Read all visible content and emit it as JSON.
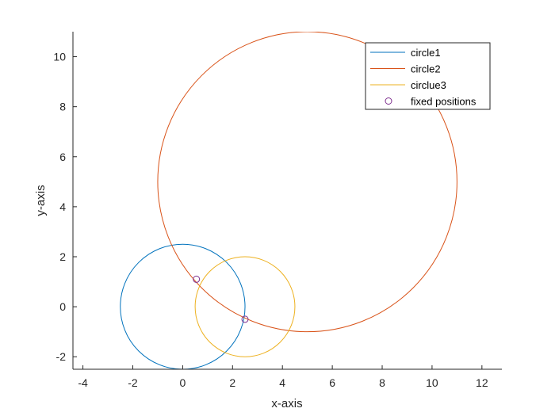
{
  "chart_data": {
    "type": "line",
    "title": "",
    "xlabel": "x-axis",
    "ylabel": "y-axis",
    "xlim": [
      -4.4,
      12.8
    ],
    "ylim": [
      -2.5,
      11
    ],
    "xticks": [
      -4,
      -2,
      0,
      2,
      4,
      6,
      8,
      10,
      12
    ],
    "yticks": [
      -2,
      0,
      2,
      4,
      6,
      8,
      10
    ],
    "grid": false,
    "legend_position": "top-right",
    "series": [
      {
        "name": "circle1",
        "kind": "circle",
        "center": [
          0,
          0
        ],
        "radius": 2.5,
        "color": "#0072BD"
      },
      {
        "name": "circle2",
        "kind": "circle",
        "center": [
          5,
          5
        ],
        "radius": 6,
        "color": "#D95319"
      },
      {
        "name": "circlue3",
        "kind": "circle",
        "center": [
          2.5,
          0
        ],
        "radius": 2,
        "color": "#EDB120"
      },
      {
        "name": "fixed positions",
        "kind": "points",
        "marker": "circle-open",
        "color": "#7E2F8E",
        "points": [
          [
            0.55,
            1.1
          ],
          [
            2.5,
            -0.5
          ]
        ]
      }
    ]
  }
}
